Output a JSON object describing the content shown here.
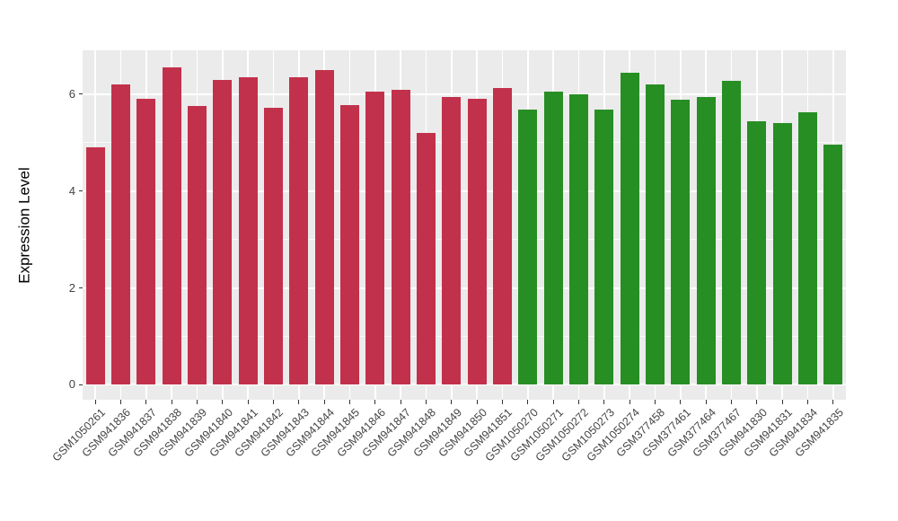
{
  "style": {
    "figure_background": "#FFFFFF",
    "panel_background": "#EBEBEB",
    "gridline_color": "#FFFFFF",
    "tick_mark_color": "#333333",
    "tick_label_color": "#444444",
    "red_bar_color": "#C2314B",
    "green_bar_color": "#278E24"
  },
  "chart_data": {
    "type": "bar",
    "title": "",
    "xlabel": "",
    "ylabel": "Expression Level",
    "grid": true,
    "legend_position": "none",
    "yaxis": {
      "ticks": [
        0,
        2,
        4,
        6
      ],
      "tick_labels": [
        "0",
        "2",
        "4",
        "6"
      ],
      "minor_ticks": [
        1,
        3,
        5
      ],
      "range": [
        0,
        6.9
      ]
    },
    "categories": [
      "GSM1050261",
      "GSM941836",
      "GSM941837",
      "GSM941838",
      "GSM941839",
      "GSM941840",
      "GSM941841",
      "GSM941842",
      "GSM941843",
      "GSM941844",
      "GSM941845",
      "GSM941846",
      "GSM941847",
      "GSM941848",
      "GSM941849",
      "GSM941850",
      "GSM941851",
      "GSM1050270",
      "GSM1050271",
      "GSM1050272",
      "GSM1050273",
      "GSM1050274",
      "GSM377458",
      "GSM377461",
      "GSM377464",
      "GSM377467",
      "GSM941830",
      "GSM941831",
      "GSM941834",
      "GSM941835"
    ],
    "values": [
      4.9,
      6.2,
      5.9,
      6.55,
      5.75,
      6.3,
      6.35,
      5.72,
      6.35,
      6.5,
      5.78,
      6.05,
      6.1,
      5.2,
      5.95,
      5.9,
      6.12,
      5.68,
      6.05,
      6.0,
      5.68,
      6.45,
      6.2,
      5.88,
      5.95,
      6.28,
      5.45,
      5.4,
      5.62,
      4.95
    ],
    "bar_colors": [
      "#C2314B",
      "#C2314B",
      "#C2314B",
      "#C2314B",
      "#C2314B",
      "#C2314B",
      "#C2314B",
      "#C2314B",
      "#C2314B",
      "#C2314B",
      "#C2314B",
      "#C2314B",
      "#C2314B",
      "#C2314B",
      "#C2314B",
      "#C2314B",
      "#C2314B",
      "#278E24",
      "#278E24",
      "#278E24",
      "#278E24",
      "#278E24",
      "#278E24",
      "#278E24",
      "#278E24",
      "#278E24",
      "#278E24",
      "#278E24",
      "#278E24",
      "#278E24"
    ]
  }
}
